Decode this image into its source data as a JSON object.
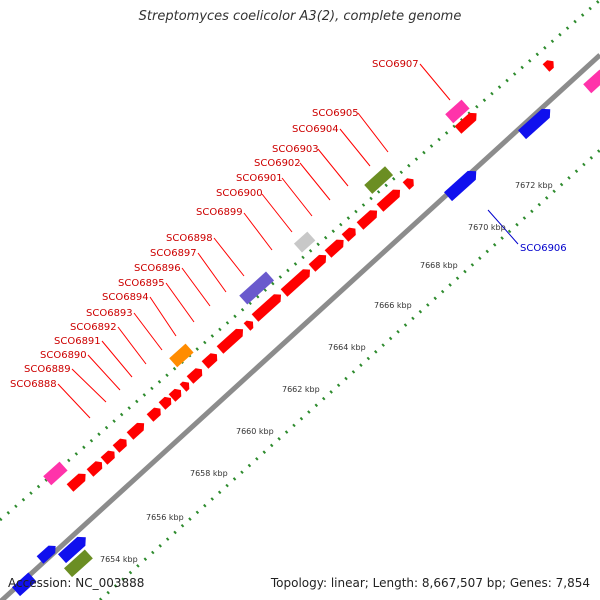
{
  "title": "Streptomyces coelicolor A3(2), complete genome",
  "accession_text": "Accession: NC_003888",
  "summary_text": "Topology: linear; Length: 8,667,507 bp; Genes: 7,854",
  "colors": {
    "backbone": "#8c8c8c",
    "tick": "#2e8b2e",
    "label_forward": "#cc0000",
    "label_reverse": "#0000cc",
    "red": "#ff0000",
    "blue": "#1010ee",
    "pink": "#ff33aa",
    "olive": "#6b8e23",
    "orange": "#ff8c00",
    "purple": "#6a5acd",
    "gray": "#c8c8c8"
  },
  "scale_labels": [
    "7654 kbp",
    "7656 kbp",
    "7658 kbp",
    "7660 kbp",
    "7662 kbp",
    "7664 kbp",
    "7666 kbp",
    "7668 kbp",
    "7670 kbp",
    "7672 kbp"
  ],
  "gene_labels_forward": [
    "SCO6888",
    "SCO6889",
    "SCO6890",
    "SCO6891",
    "SCO6892",
    "SCO6893",
    "SCO6894",
    "SCO6895",
    "SCO6896",
    "SCO6897",
    "SCO6898",
    "SCO6899",
    "SCO6900",
    "SCO6901",
    "SCO6902",
    "SCO6903",
    "SCO6904",
    "SCO6905",
    "SCO6907"
  ],
  "gene_labels_reverse": [
    "SCO6906"
  ]
}
